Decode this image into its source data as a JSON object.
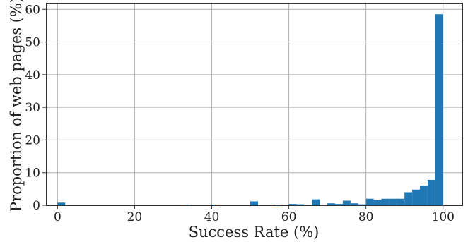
{
  "chart_data": {
    "type": "bar",
    "xlabel": "Success Rate (%)",
    "ylabel": "Proportion of web pages (%)",
    "xlim": [
      -3,
      105
    ],
    "ylim": [
      0,
      62
    ],
    "xticks": [
      0,
      20,
      40,
      60,
      80,
      100
    ],
    "yticks": [
      0,
      10,
      20,
      30,
      40,
      50,
      60
    ],
    "grid": true,
    "bar_color": "#1f77b4",
    "bin_width": 2,
    "bins": [
      {
        "x": 0,
        "value": 0.8
      },
      {
        "x": 32,
        "value": 0.2
      },
      {
        "x": 40,
        "value": 0.2
      },
      {
        "x": 50,
        "value": 1.2
      },
      {
        "x": 56,
        "value": 0.2
      },
      {
        "x": 60,
        "value": 0.4
      },
      {
        "x": 62,
        "value": 0.3
      },
      {
        "x": 66,
        "value": 1.8
      },
      {
        "x": 70,
        "value": 0.6
      },
      {
        "x": 72,
        "value": 0.4
      },
      {
        "x": 74,
        "value": 1.4
      },
      {
        "x": 76,
        "value": 0.6
      },
      {
        "x": 78,
        "value": 0.3
      },
      {
        "x": 80,
        "value": 2.0
      },
      {
        "x": 82,
        "value": 1.6
      },
      {
        "x": 84,
        "value": 2.0
      },
      {
        "x": 86,
        "value": 2.0
      },
      {
        "x": 88,
        "value": 2.0
      },
      {
        "x": 90,
        "value": 4.0
      },
      {
        "x": 92,
        "value": 4.8
      },
      {
        "x": 94,
        "value": 6.0
      },
      {
        "x": 96,
        "value": 7.8
      },
      {
        "x": 98,
        "value": 58.5
      }
    ]
  }
}
